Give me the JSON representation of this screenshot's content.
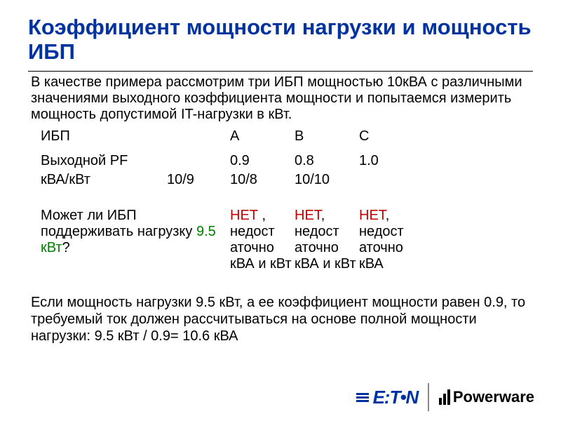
{
  "title_fontsize": 31,
  "body_fontsize": 20,
  "title_color": "#0033a0",
  "red_color": "#c00000",
  "green_color": "#008000",
  "title": "Коэффициент мощности нагрузки и мощность ИБП",
  "intro": "В качестве примера рассмотрим три ИБП мощностью 10кВА с различными значениями выходного коэффициента мощности и попытаемся измерить мощность допустимой IT-нагрузки в кВт.",
  "table": {
    "header": {
      "c0": "ИБП",
      "c1": "",
      "c2": "A",
      "c3": "B",
      "c4": "C"
    },
    "pf": {
      "c0": "Выходной PF",
      "c1": "",
      "c2": "0.9",
      "c3": "0.8",
      "c4": "1.0"
    },
    "kva": {
      "c0": "кВА/кВт",
      "c1": "10/9",
      "c2": "10/8",
      "c3": "10/10",
      "c4": ""
    },
    "question": {
      "q_pre": "Может ли ИБП поддерживать нагрузку ",
      "q_val": "9.5 кВт",
      "q_post": "?",
      "a": {
        "no": "НЕТ",
        "rest": " , недост аточно кВА и кВт"
      },
      "b": {
        "no": "НЕТ",
        "rest": ", недост аточно кВА и кВт"
      },
      "c": {
        "no": "НЕТ",
        "rest": ", недост аточно кВА"
      }
    }
  },
  "conclusion": "Если мощность нагрузки 9.5 кВт, а ее коэффициент мощности равен 0.9, то  требуемый ток должен рассчитываться на основе полной мощности нагрузки: 9.5 кВт / 0.9= 10.6 кВА",
  "logos": {
    "eaton": "E:T•N",
    "powerware": "Powerware",
    "eaton_fontsize": 26,
    "powerware_fontsize": 22
  }
}
